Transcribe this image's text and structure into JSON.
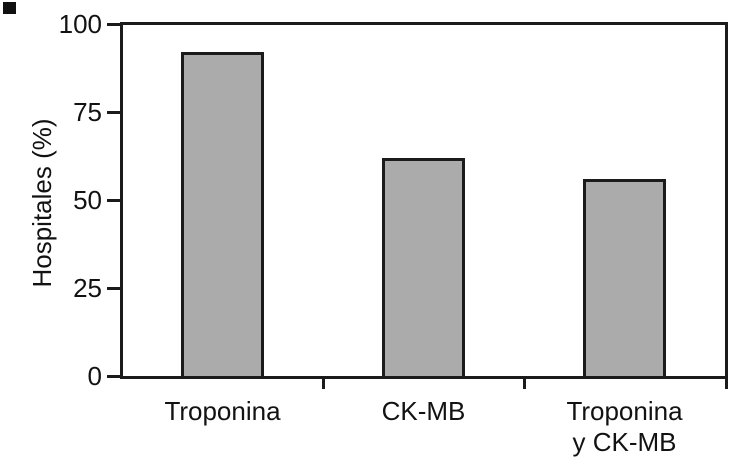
{
  "chart_data": {
    "type": "bar",
    "title": "",
    "xlabel": "",
    "ylabel": "Hospitales (%)",
    "categories": [
      "Troponina",
      "CK-MB",
      "Troponina y CK-MB"
    ],
    "category_lines": [
      [
        "Troponina"
      ],
      [
        "CK-MB"
      ],
      [
        "Troponina",
        "y CK-MB"
      ]
    ],
    "values": [
      92,
      62,
      56
    ],
    "series": [
      {
        "name": "Hospitales",
        "values": [
          92,
          62,
          56
        ]
      }
    ],
    "ylim": [
      0,
      100
    ],
    "yticks": [
      0,
      25,
      50,
      75,
      100
    ],
    "grid": false,
    "legend_position": "none",
    "frame": "full-box",
    "bar_fill_color": "#ababab",
    "bar_border_color": "#1b1b1b",
    "axis_color": "#1b1b1b",
    "text_color": "#121212",
    "background_color": "#ffffff"
  }
}
